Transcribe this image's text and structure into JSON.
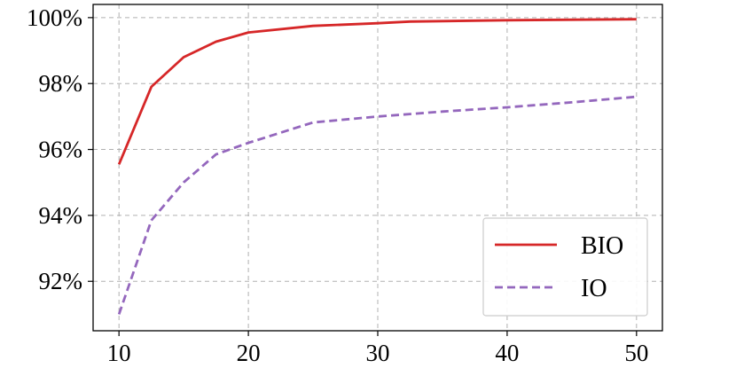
{
  "chart_data": {
    "type": "line",
    "title": "",
    "xlabel": "",
    "ylabel": "",
    "xlim": [
      8,
      52
    ],
    "ylim": [
      90.5,
      100.4
    ],
    "x_ticks": [
      10,
      20,
      30,
      40,
      50
    ],
    "x_tick_labels": [
      "10",
      "20",
      "30",
      "40",
      "50"
    ],
    "y_ticks": [
      92,
      94,
      96,
      98,
      100
    ],
    "y_tick_labels": [
      "92%",
      "94%",
      "96%",
      "98%",
      "100%"
    ],
    "grid": true,
    "legend_position": "lower-right",
    "series": [
      {
        "name": "BIO",
        "color": "#d62728",
        "line_style": "solid",
        "x": [
          10,
          12.5,
          15,
          17.5,
          20,
          25,
          30,
          32.5,
          40,
          50
        ],
        "y": [
          95.55,
          97.9,
          98.8,
          99.27,
          99.55,
          99.75,
          99.83,
          99.88,
          99.92,
          99.95
        ]
      },
      {
        "name": "IO",
        "color": "#9467bd",
        "line_style": "dashed",
        "x": [
          10,
          12.5,
          15,
          17.5,
          20,
          25,
          30,
          35,
          40,
          45,
          50
        ],
        "y": [
          91.0,
          93.85,
          95.0,
          95.85,
          96.2,
          96.82,
          97.0,
          97.15,
          97.28,
          97.43,
          97.6
        ]
      }
    ]
  }
}
